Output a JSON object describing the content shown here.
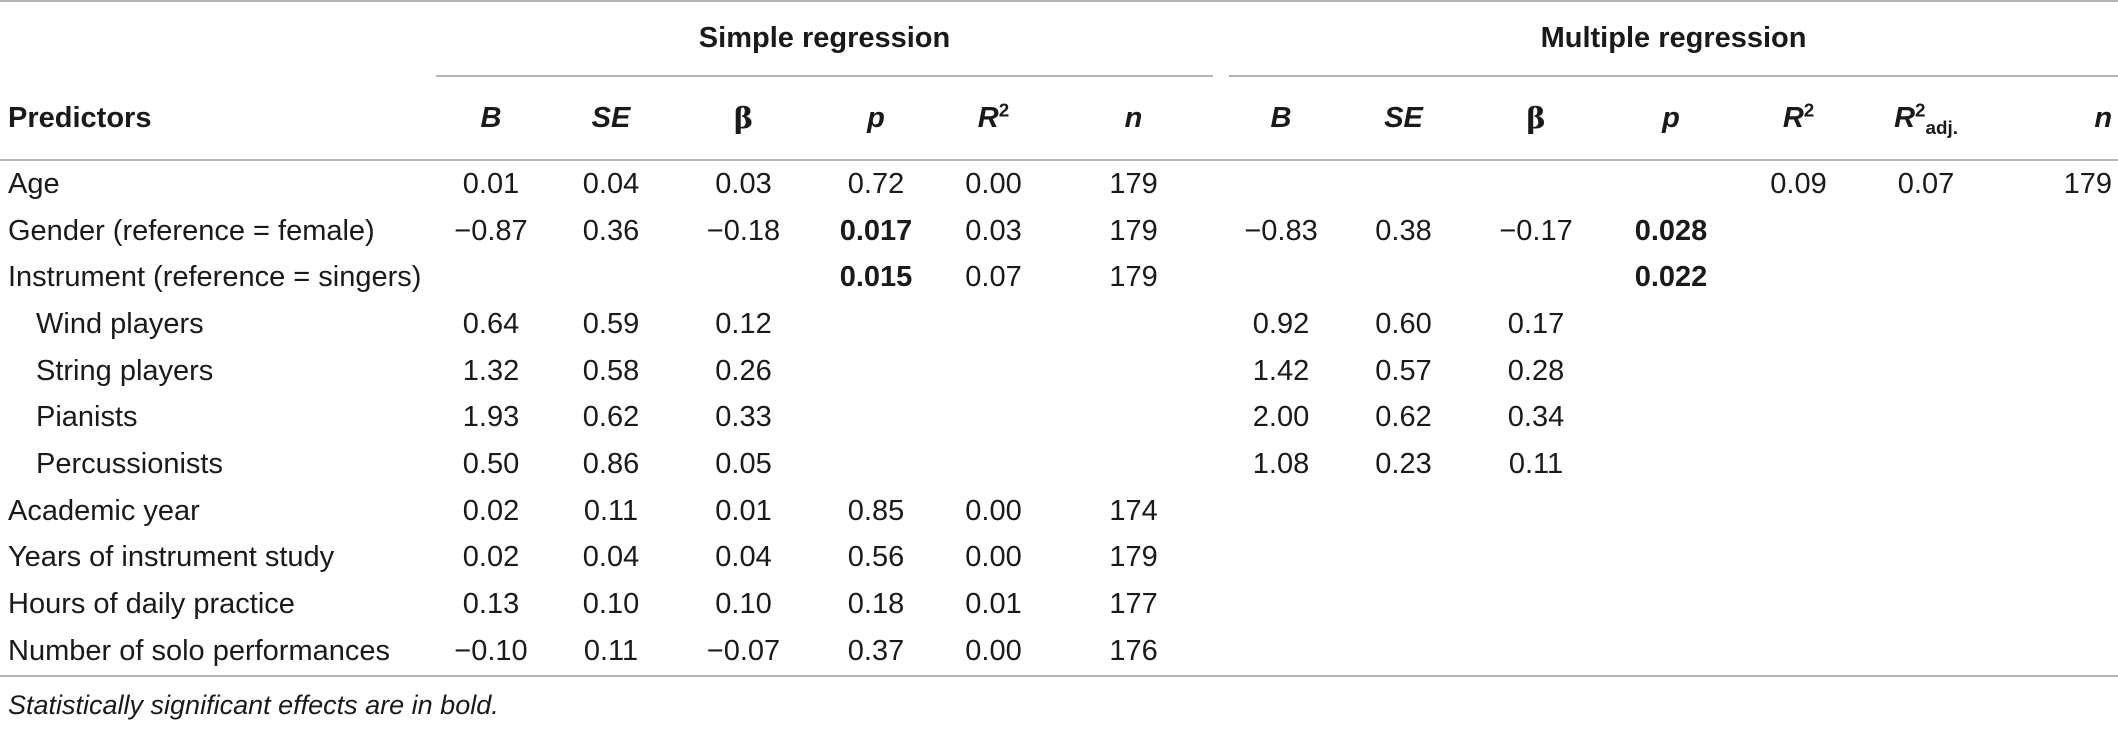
{
  "table": {
    "group_headers": {
      "simple": "Simple regression",
      "multiple": "Multiple regression"
    },
    "column_headers": {
      "predictors": "Predictors",
      "B": "B",
      "SE": "SE",
      "beta": "β",
      "p": "p",
      "R": "R",
      "R_sup": "2",
      "n": "n",
      "R_adj_sub": "adj."
    },
    "rows": [
      {
        "label": "Age",
        "indent": false,
        "s": [
          "0.01",
          "0.04",
          "0.03",
          "0.72",
          "0.00",
          "179"
        ],
        "m": [
          "",
          "",
          "",
          "",
          "0.09",
          "0.07",
          "179"
        ],
        "s_p_bold": false,
        "m_p_bold": false
      },
      {
        "label": "Gender (reference = female)",
        "indent": false,
        "s": [
          "−0.87",
          "0.36",
          "−0.18",
          "0.017",
          "0.03",
          "179"
        ],
        "m": [
          "−0.83",
          "0.38",
          "−0.17",
          "0.028",
          "",
          "",
          ""
        ],
        "s_p_bold": true,
        "m_p_bold": true
      },
      {
        "label": "Instrument (reference = singers)",
        "indent": false,
        "s": [
          "",
          "",
          "",
          "0.015",
          "0.07",
          "179"
        ],
        "m": [
          "",
          "",
          "",
          "0.022",
          "",
          "",
          ""
        ],
        "s_p_bold": true,
        "m_p_bold": true
      },
      {
        "label": "Wind players",
        "indent": true,
        "s": [
          "0.64",
          "0.59",
          "0.12",
          "",
          "",
          ""
        ],
        "m": [
          "0.92",
          "0.60",
          "0.17",
          "",
          "",
          "",
          ""
        ],
        "s_p_bold": false,
        "m_p_bold": false
      },
      {
        "label": "String players",
        "indent": true,
        "s": [
          "1.32",
          "0.58",
          "0.26",
          "",
          "",
          ""
        ],
        "m": [
          "1.42",
          "0.57",
          "0.28",
          "",
          "",
          "",
          ""
        ],
        "s_p_bold": false,
        "m_p_bold": false
      },
      {
        "label": "Pianists",
        "indent": true,
        "s": [
          "1.93",
          "0.62",
          "0.33",
          "",
          "",
          ""
        ],
        "m": [
          "2.00",
          "0.62",
          "0.34",
          "",
          "",
          "",
          ""
        ],
        "s_p_bold": false,
        "m_p_bold": false
      },
      {
        "label": "Percussionists",
        "indent": true,
        "s": [
          "0.50",
          "0.86",
          "0.05",
          "",
          "",
          ""
        ],
        "m": [
          "1.08",
          "0.23",
          "0.11",
          "",
          "",
          "",
          ""
        ],
        "s_p_bold": false,
        "m_p_bold": false
      },
      {
        "label": "Academic year",
        "indent": false,
        "s": [
          "0.02",
          "0.11",
          "0.01",
          "0.85",
          "0.00",
          "174"
        ],
        "m": [
          "",
          "",
          "",
          "",
          "",
          "",
          ""
        ],
        "s_p_bold": false,
        "m_p_bold": false
      },
      {
        "label": "Years of instrument study",
        "indent": false,
        "s": [
          "0.02",
          "0.04",
          "0.04",
          "0.56",
          "0.00",
          "179"
        ],
        "m": [
          "",
          "",
          "",
          "",
          "",
          "",
          ""
        ],
        "s_p_bold": false,
        "m_p_bold": false
      },
      {
        "label": "Hours of daily practice",
        "indent": false,
        "s": [
          "0.13",
          "0.10",
          "0.10",
          "0.18",
          "0.01",
          "177"
        ],
        "m": [
          "",
          "",
          "",
          "",
          "",
          "",
          ""
        ],
        "s_p_bold": false,
        "m_p_bold": false
      },
      {
        "label": "Number of solo performances",
        "indent": false,
        "s": [
          "−0.10",
          "0.11",
          "−0.07",
          "0.37",
          "0.00",
          "176"
        ],
        "m": [
          "",
          "",
          "",
          "",
          "",
          "",
          ""
        ],
        "s_p_bold": false,
        "m_p_bold": false
      }
    ],
    "footnote": "Statistically significant effects are in bold."
  }
}
